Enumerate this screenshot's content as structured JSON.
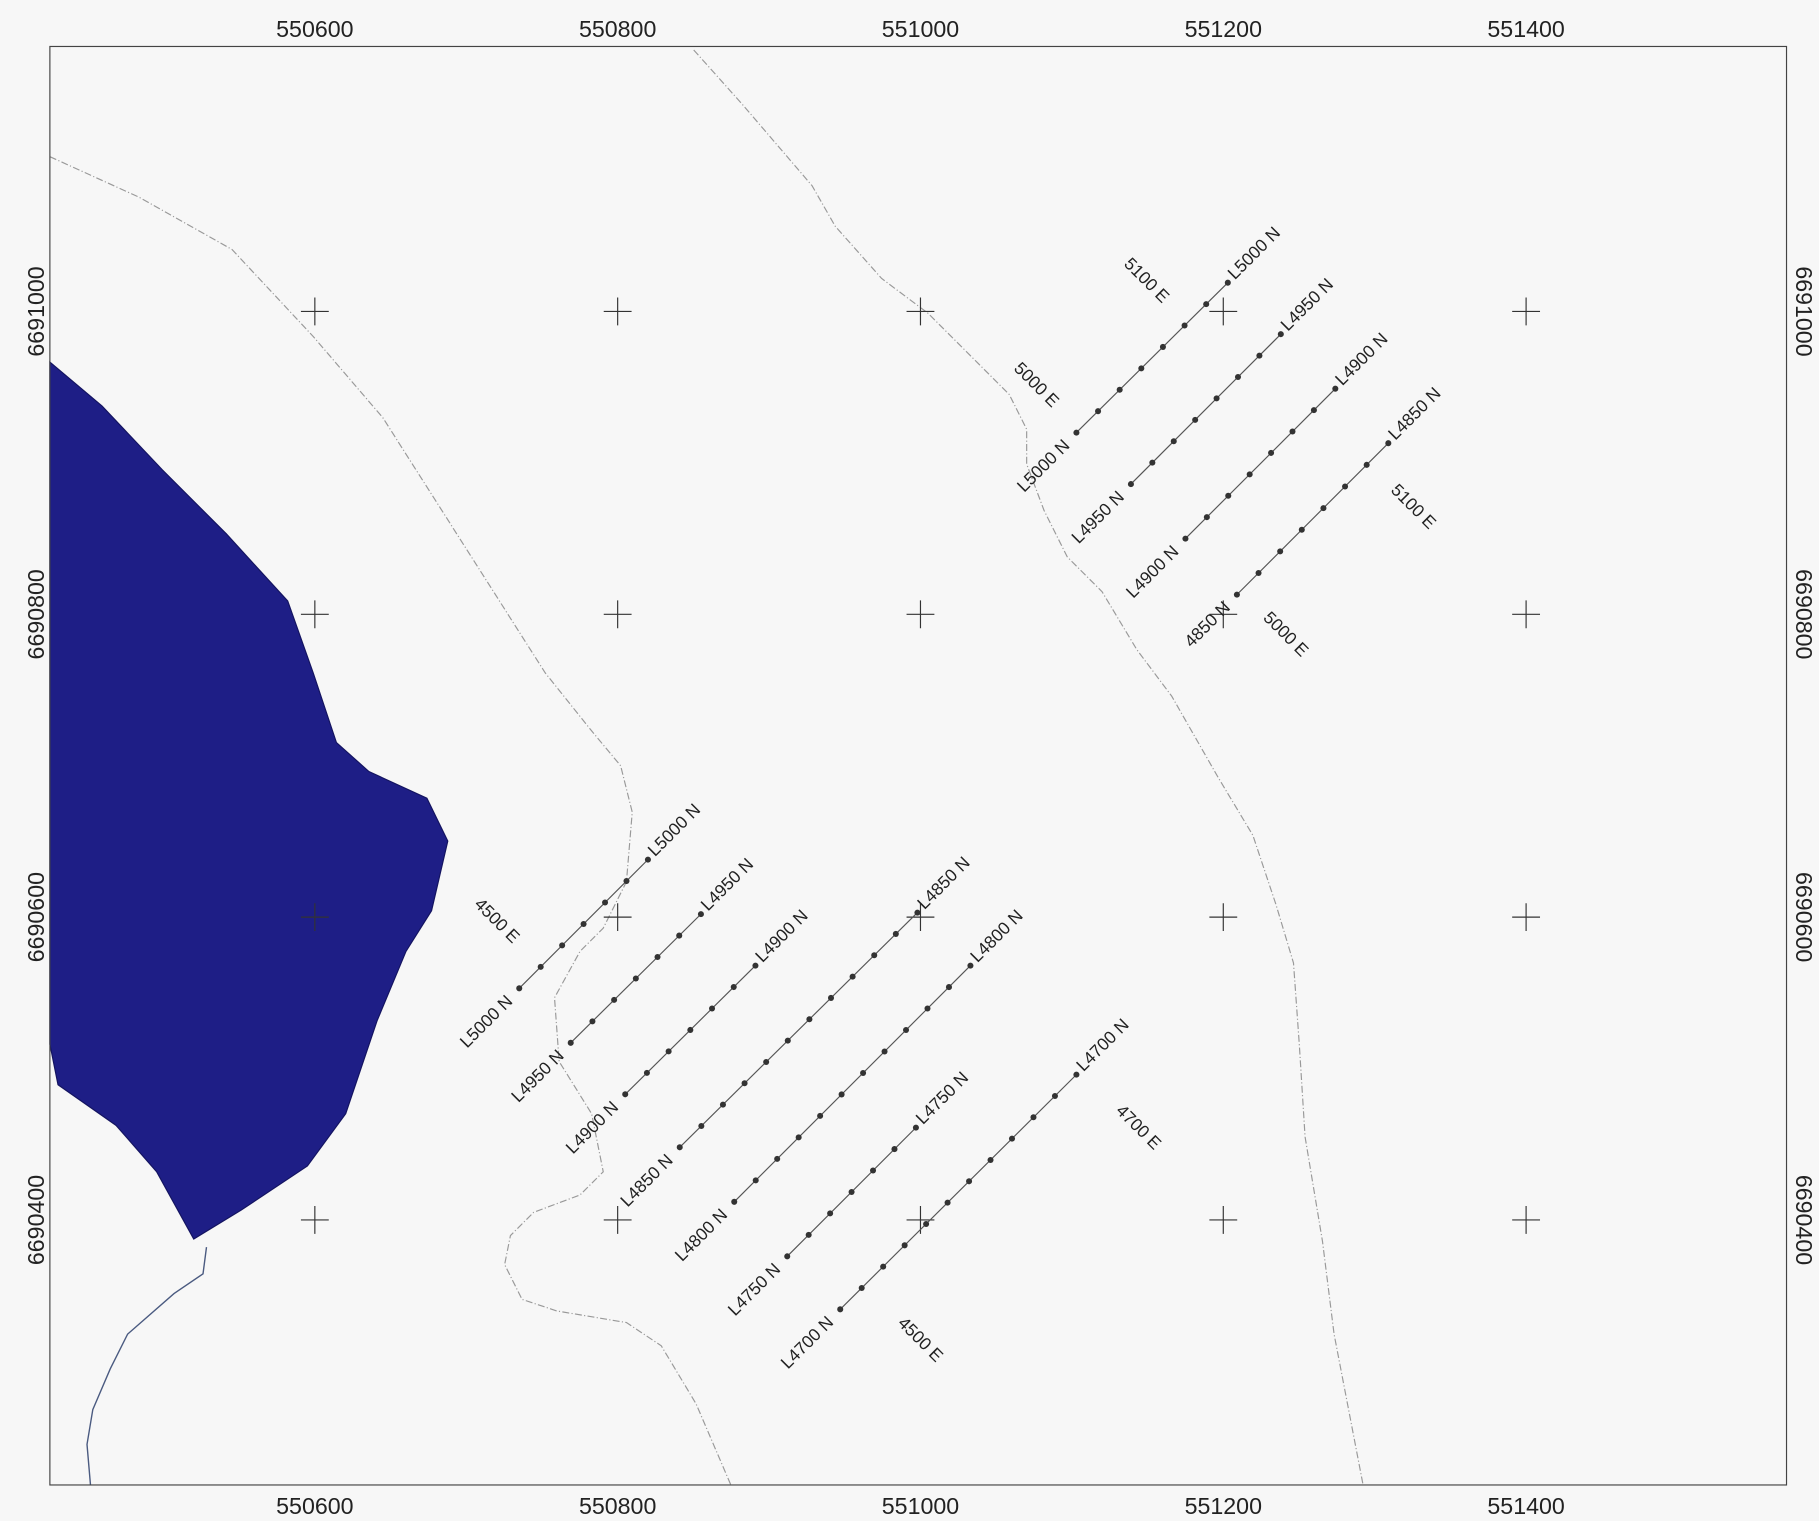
{
  "map": {
    "xlim": [
      550425,
      551572
    ],
    "ylim": [
      6690225,
      6691175
    ],
    "xticks": [
      550600,
      550800,
      551000,
      551200,
      551400
    ],
    "yticks": [
      6690400,
      6690600,
      6690800,
      6691000
    ],
    "lines": [
      {
        "start_label": "L5000 N",
        "end_label": "L5000 N",
        "e": [
          551103,
          551203
        ],
        "n": [
          6690920,
          6691019
        ],
        "stations": 8
      },
      {
        "start_label": "L4950 N",
        "end_label": "L4950 N",
        "e": [
          551139,
          551238
        ],
        "n": [
          6690886,
          6690985
        ],
        "stations": 8
      },
      {
        "start_label": "L4900 N",
        "end_label": "L4900 N",
        "e": [
          551175,
          551274
        ],
        "n": [
          6690850,
          6690949
        ],
        "stations": 8
      },
      {
        "start_label": "4850 N",
        "end_label": "L4850 N",
        "e": [
          551209,
          551309
        ],
        "n": [
          6690813,
          6690913
        ],
        "stations": 8
      },
      {
        "start_label": "L5000 N",
        "end_label": "L5000 N",
        "e": [
          550735,
          550820
        ],
        "n": [
          6690553,
          6690638
        ],
        "stations": 7
      },
      {
        "start_label": "L4950 N",
        "end_label": "L4950 N",
        "e": [
          550769,
          550855
        ],
        "n": [
          6690517,
          6690602
        ],
        "stations": 7
      },
      {
        "start_label": "L4900 N",
        "end_label": "L4900 N",
        "e": [
          550805,
          550891
        ],
        "n": [
          6690483,
          6690568
        ],
        "stations": 7
      },
      {
        "start_label": "L4850 N",
        "end_label": "L4850 N",
        "e": [
          550841,
          550998
        ],
        "n": [
          6690448,
          6690603
        ],
        "stations": 12
      },
      {
        "start_label": "L4800 N",
        "end_label": "L4800 N",
        "e": [
          550877,
          551033
        ],
        "n": [
          6690412,
          6690568
        ],
        "stations": 12
      },
      {
        "start_label": "L4750 N",
        "end_label": "L4750 N",
        "e": [
          550912,
          550997
        ],
        "n": [
          6690376,
          6690461
        ],
        "stations": 7
      },
      {
        "start_label": "L4700 N",
        "end_label": "L4700 N",
        "e": [
          550947,
          551103
        ],
        "n": [
          6690341,
          6690496
        ],
        "stations": 12
      }
    ],
    "easting_labels": [
      "5100 E",
      "5000 E",
      "5100 E",
      "5000 E",
      "4500 E",
      "4700 E",
      "4500 E"
    ]
  }
}
